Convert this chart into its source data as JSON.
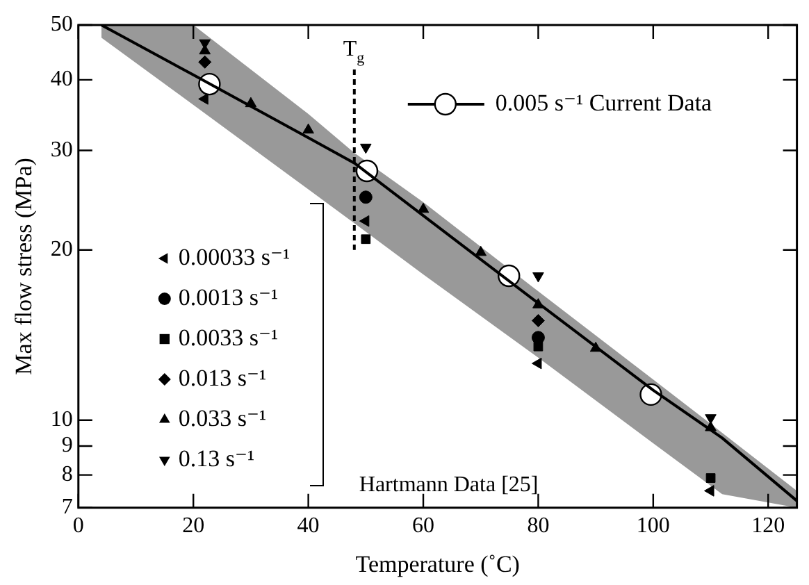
{
  "chart_data": {
    "type": "scatter",
    "xlabel": "Temperature (˚C)",
    "ylabel": "Max flow stress (MPa)",
    "xlim": [
      0,
      125
    ],
    "xticks": [
      0,
      20,
      40,
      60,
      80,
      100,
      120
    ],
    "ylim": [
      7,
      50
    ],
    "yticks": [
      7,
      8,
      9,
      10,
      20,
      30,
      40,
      50
    ],
    "log": "y",
    "grid": false,
    "legend": "left",
    "ref_lines": [
      {
        "axis": "x",
        "value": 48,
        "label": "T$_{g}$",
        "line_style": "dashed"
      }
    ],
    "annotations": [
      "Hartmann Data [25]"
    ],
    "series": [
      {
        "type": "line",
        "color": "#000000",
        "marker": "none",
        "x": [
          4,
          20,
          40,
          48,
          60,
          80,
          100,
          112,
          125
        ],
        "values": [
          50,
          40.8,
          31.6,
          28.5,
          23,
          16.1,
          11.3,
          9.3,
          7.2
        ],
        "lower": [
          47.5,
          36.1,
          25.6,
          22.3,
          18.1,
          12.9,
          9.1,
          7.4,
          7
        ],
        "upper": [
          50,
          50,
          34.8,
          29.7,
          24.3,
          16.9,
          11.8,
          9.5,
          7.5
        ]
      },
      {
        "type": "scatter",
        "name": "0.005 s⁻¹ Current Data",
        "color": "#ffffff",
        "marker": "circle",
        "x": [
          22.8,
          50.2,
          74.9,
          99.6
        ],
        "values": [
          39.3,
          27.6,
          18,
          11.1
        ]
      },
      {
        "type": "scatter",
        "name": "0.00033 s⁻¹",
        "color": "#000000",
        "marker": "triangle",
        "x": [
          22,
          50,
          80,
          110
        ],
        "values": [
          37,
          22.5,
          12.6,
          7.5
        ]
      },
      {
        "type": "scatter",
        "name": "0.0013 s⁻¹",
        "color": "#000000",
        "marker": "circle",
        "x": [
          50,
          80
        ],
        "values": [
          24.8,
          14
        ]
      },
      {
        "type": "scatter",
        "name": "0.0033 s⁻¹",
        "color": "#000000",
        "marker": "square",
        "x": [
          50,
          80,
          110
        ],
        "values": [
          20.9,
          13.5,
          7.9
        ]
      },
      {
        "type": "scatter",
        "name": "0.013 s⁻¹",
        "color": "#000000",
        "marker": "diamond",
        "x": [
          22,
          80
        ],
        "values": [
          43,
          15
        ]
      },
      {
        "type": "scatter",
        "name": "0.033 s⁻¹",
        "color": "#000000",
        "marker": "triangle",
        "x": [
          22,
          30,
          40,
          60,
          70,
          80,
          90,
          110
        ],
        "values": [
          45,
          36.3,
          32.6,
          23.6,
          19.8,
          16,
          13.4,
          9.7
        ]
      },
      {
        "type": "scatter",
        "name": "0.13 s⁻¹",
        "color": "#000000",
        "marker": "triangle",
        "x": [
          22,
          50,
          80,
          110
        ],
        "values": [
          46.5,
          30.4,
          18,
          10.1
        ]
      }
    ]
  }
}
